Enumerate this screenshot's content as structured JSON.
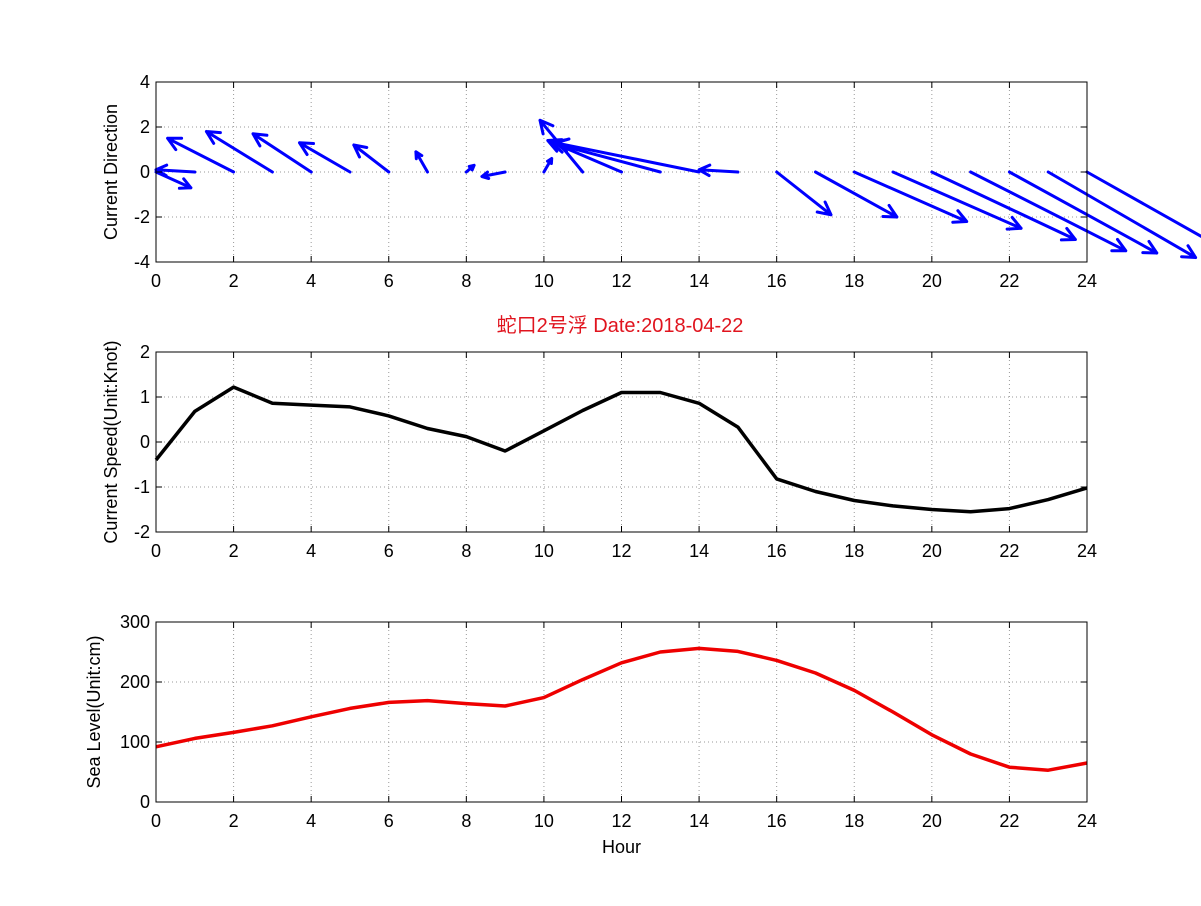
{
  "figure_title": "蛇口2号浮   Date:2018-04-22",
  "colors": {
    "title": "#e0141e",
    "direction": "#0000ff",
    "speed": "#000000",
    "sea_level": "#ee0000",
    "grid": "#9a9a9a",
    "axis": "#000000"
  },
  "chart_data": [
    {
      "type": "quiver",
      "title": "",
      "xlabel": "",
      "ylabel": "Current Direction",
      "xlim": [
        0,
        24
      ],
      "ylim": [
        -4,
        4
      ],
      "xticks": [
        0,
        2,
        4,
        6,
        8,
        10,
        12,
        14,
        16,
        18,
        20,
        22,
        24
      ],
      "yticks": [
        -4,
        -2,
        0,
        2,
        4
      ],
      "grid": true,
      "x": [
        0,
        1,
        2,
        3,
        4,
        5,
        6,
        7,
        8,
        9,
        10,
        11,
        12,
        13,
        14,
        15,
        16,
        17,
        18,
        19,
        20,
        21,
        22,
        23,
        24
      ],
      "u": [
        0.9,
        -1.0,
        -1.7,
        -1.7,
        -1.5,
        -1.3,
        -0.9,
        -0.3,
        0.2,
        -0.6,
        0.2,
        -1.1,
        -1.9,
        -2.8,
        -3.7,
        -1.0,
        1.4,
        2.1,
        2.9,
        3.3,
        3.7,
        4.0,
        3.8,
        3.8,
        3.5
      ],
      "v": [
        -0.7,
        0.1,
        1.5,
        1.8,
        1.7,
        1.3,
        1.2,
        0.9,
        0.3,
        -0.2,
        0.6,
        2.3,
        1.4,
        1.3,
        1.3,
        0.1,
        -1.9,
        -2.0,
        -2.2,
        -2.5,
        -3.0,
        -3.5,
        -3.6,
        -3.8,
        -3.4
      ]
    },
    {
      "type": "line",
      "title": "",
      "xlabel": "",
      "ylabel": "Current Speed(Unit:Knot)",
      "xlim": [
        0,
        24
      ],
      "ylim": [
        -2,
        2
      ],
      "xticks": [
        0,
        2,
        4,
        6,
        8,
        10,
        12,
        14,
        16,
        18,
        20,
        22,
        24
      ],
      "yticks": [
        -2,
        -1,
        0,
        1,
        2
      ],
      "grid": true,
      "x": [
        0,
        1,
        2,
        3,
        4,
        5,
        6,
        7,
        8,
        9,
        10,
        11,
        12,
        13,
        14,
        15,
        16,
        17,
        18,
        19,
        20,
        21,
        22,
        23,
        24
      ],
      "values": [
        -0.4,
        0.68,
        1.22,
        0.86,
        0.82,
        0.78,
        0.58,
        0.3,
        0.12,
        -0.2,
        0.25,
        0.7,
        1.1,
        1.1,
        0.86,
        0.33,
        -0.82,
        -1.1,
        -1.3,
        -1.42,
        -1.5,
        -1.55,
        -1.48,
        -1.28,
        -1.02
      ]
    },
    {
      "type": "line",
      "title": "",
      "xlabel": "Hour",
      "ylabel": "Sea Level(Unit:cm)",
      "xlim": [
        0,
        24
      ],
      "ylim": [
        0,
        300
      ],
      "xticks": [
        0,
        2,
        4,
        6,
        8,
        10,
        12,
        14,
        16,
        18,
        20,
        22,
        24
      ],
      "yticks": [
        0,
        100,
        200,
        300
      ],
      "grid": true,
      "x": [
        0,
        1,
        2,
        3,
        4,
        5,
        6,
        7,
        8,
        9,
        10,
        11,
        12,
        13,
        14,
        15,
        16,
        17,
        18,
        19,
        20,
        21,
        22,
        23,
        24
      ],
      "values": [
        92,
        106,
        116,
        127,
        142,
        156,
        166,
        169,
        164,
        160,
        174,
        204,
        232,
        250,
        256,
        251,
        236,
        215,
        186,
        150,
        112,
        80,
        58,
        53,
        65
      ]
    }
  ]
}
